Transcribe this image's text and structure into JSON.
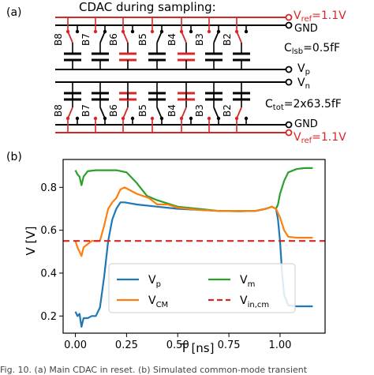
{
  "panel_a": {
    "label": "(a)",
    "title": "CDAC during sampling:",
    "vref_top": "V",
    "vref_top_sub": "ref",
    "vref_top_eq": "=1.1V",
    "gnd_top": "GND",
    "clsb_c": "C",
    "clsb_sub": "lsb",
    "clsb_eq": "=0.5fF",
    "vp": "V",
    "vp_sub": "p",
    "vn": "V",
    "vn_sub": "n",
    "ctot_c": "C",
    "ctot_sub": "tot",
    "ctot_eq": "=2x63.5fF",
    "gnd_bottom": "GND",
    "vref_bottom": "V",
    "vref_bottom_sub": "ref",
    "vref_bottom_eq": "=1.1V",
    "top_bits": [
      "B8",
      "B7",
      "B6",
      "B5",
      "B4",
      "B3",
      "B2"
    ],
    "bottom_bits": [
      "B8",
      "B7",
      "B6",
      "B5",
      "B4",
      "B3",
      "B2"
    ],
    "colors": {
      "red": "#d62728",
      "black": "#000000"
    }
  },
  "panel_b": {
    "label": "(b)"
  },
  "caption": "Fig. 10. (a) Main CDAC in reset. (b) Simulated common-mode transient",
  "chart_data": {
    "type": "line",
    "xlabel": "T [ns]",
    "ylabel": "V [V]",
    "xlim": [
      -0.06,
      1.22
    ],
    "ylim": [
      0.12,
      0.93
    ],
    "xticks": [
      0.0,
      0.25,
      0.5,
      0.75,
      1.0
    ],
    "xtick_labels": [
      "0.00",
      "0.25",
      "0.50",
      "0.75",
      "1.00"
    ],
    "yticks": [
      0.2,
      0.4,
      0.6,
      0.8
    ],
    "ytick_labels": [
      "0.2",
      "0.4",
      "0.6",
      "0.8"
    ],
    "grid": false,
    "legend_position": "lower-center",
    "series": [
      {
        "name": "V_p",
        "legend_main": "V",
        "legend_sub": "p",
        "color": "#1f77b4",
        "dash": "solid",
        "points": [
          [
            0.0,
            0.22
          ],
          [
            0.01,
            0.2
          ],
          [
            0.02,
            0.21
          ],
          [
            0.03,
            0.15
          ],
          [
            0.04,
            0.19
          ],
          [
            0.06,
            0.19
          ],
          [
            0.08,
            0.2
          ],
          [
            0.1,
            0.2
          ],
          [
            0.12,
            0.24
          ],
          [
            0.14,
            0.38
          ],
          [
            0.16,
            0.55
          ],
          [
            0.18,
            0.65
          ],
          [
            0.2,
            0.7
          ],
          [
            0.22,
            0.73
          ],
          [
            0.24,
            0.73
          ],
          [
            0.3,
            0.72
          ],
          [
            0.4,
            0.71
          ],
          [
            0.5,
            0.7
          ],
          [
            0.6,
            0.695
          ],
          [
            0.7,
            0.69
          ],
          [
            0.8,
            0.688
          ],
          [
            0.88,
            0.69
          ],
          [
            0.93,
            0.7
          ],
          [
            0.96,
            0.71
          ],
          [
            0.98,
            0.7
          ],
          [
            0.99,
            0.65
          ],
          [
            1.0,
            0.55
          ],
          [
            1.01,
            0.4
          ],
          [
            1.02,
            0.3
          ],
          [
            1.04,
            0.25
          ],
          [
            1.08,
            0.245
          ],
          [
            1.12,
            0.245
          ],
          [
            1.16,
            0.245
          ]
        ]
      },
      {
        "name": "V_m",
        "legend_main": "V",
        "legend_sub": "m",
        "color": "#2ca02c",
        "dash": "solid",
        "points": [
          [
            0.0,
            0.88
          ],
          [
            0.01,
            0.86
          ],
          [
            0.02,
            0.85
          ],
          [
            0.03,
            0.81
          ],
          [
            0.04,
            0.85
          ],
          [
            0.06,
            0.875
          ],
          [
            0.1,
            0.88
          ],
          [
            0.15,
            0.88
          ],
          [
            0.2,
            0.88
          ],
          [
            0.25,
            0.87
          ],
          [
            0.3,
            0.82
          ],
          [
            0.35,
            0.76
          ],
          [
            0.4,
            0.74
          ],
          [
            0.5,
            0.71
          ],
          [
            0.6,
            0.7
          ],
          [
            0.7,
            0.69
          ],
          [
            0.8,
            0.69
          ],
          [
            0.88,
            0.69
          ],
          [
            0.93,
            0.7
          ],
          [
            0.96,
            0.71
          ],
          [
            0.98,
            0.7
          ],
          [
            0.99,
            0.72
          ],
          [
            1.0,
            0.77
          ],
          [
            1.02,
            0.83
          ],
          [
            1.04,
            0.87
          ],
          [
            1.08,
            0.885
          ],
          [
            1.12,
            0.89
          ],
          [
            1.16,
            0.89
          ]
        ]
      },
      {
        "name": "V_CM",
        "legend_main": "V",
        "legend_sub": "CM",
        "color": "#ff7f0e",
        "dash": "solid",
        "points": [
          [
            0.0,
            0.55
          ],
          [
            0.01,
            0.52
          ],
          [
            0.02,
            0.5
          ],
          [
            0.03,
            0.48
          ],
          [
            0.04,
            0.52
          ],
          [
            0.06,
            0.535
          ],
          [
            0.08,
            0.55
          ],
          [
            0.1,
            0.55
          ],
          [
            0.12,
            0.55
          ],
          [
            0.14,
            0.62
          ],
          [
            0.16,
            0.7
          ],
          [
            0.18,
            0.73
          ],
          [
            0.2,
            0.75
          ],
          [
            0.22,
            0.79
          ],
          [
            0.24,
            0.8
          ],
          [
            0.26,
            0.79
          ],
          [
            0.3,
            0.77
          ],
          [
            0.33,
            0.76
          ],
          [
            0.36,
            0.75
          ],
          [
            0.4,
            0.72
          ],
          [
            0.45,
            0.72
          ],
          [
            0.5,
            0.705
          ],
          [
            0.6,
            0.695
          ],
          [
            0.7,
            0.69
          ],
          [
            0.8,
            0.688
          ],
          [
            0.88,
            0.69
          ],
          [
            0.93,
            0.7
          ],
          [
            0.96,
            0.71
          ],
          [
            0.98,
            0.7
          ],
          [
            1.0,
            0.66
          ],
          [
            1.02,
            0.6
          ],
          [
            1.04,
            0.57
          ],
          [
            1.08,
            0.565
          ],
          [
            1.12,
            0.565
          ],
          [
            1.16,
            0.565
          ]
        ]
      },
      {
        "name": "V_in,cm",
        "legend_main": "V",
        "legend_sub": "in,cm",
        "color": "#d62728",
        "dash": "dashed",
        "points": [
          [
            -0.06,
            0.55
          ],
          [
            1.22,
            0.55
          ]
        ]
      }
    ]
  }
}
